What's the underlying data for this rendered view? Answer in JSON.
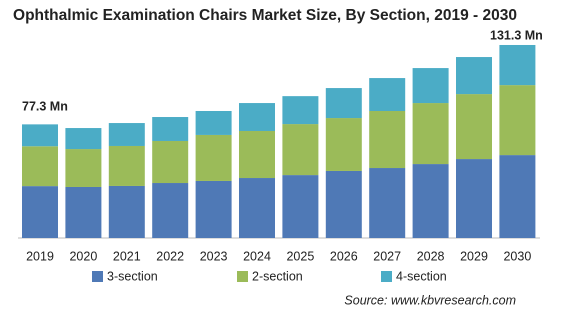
{
  "chart_data": {
    "type": "stacked_bar",
    "title": "Ophthalmic Examination Chairs Market Size, By Section, 2019 - 2030",
    "categories": [
      "2019",
      "2020",
      "2021",
      "2022",
      "2023",
      "2024",
      "2025",
      "2026",
      "2027",
      "2028",
      "2029",
      "2030"
    ],
    "series": [
      {
        "name": "3-section",
        "color": "#4f79b6",
        "values": [
          35.3,
          34.7,
          35.4,
          37.4,
          38.8,
          40.8,
          42.8,
          45.6,
          47.6,
          50.3,
          53.7,
          56.4
        ]
      },
      {
        "name": "2-section",
        "color": "#9bbb59",
        "values": [
          27.1,
          25.8,
          27.2,
          28.6,
          31.3,
          32.0,
          34.7,
          36.0,
          38.8,
          41.5,
          44.2,
          47.6
        ]
      },
      {
        "name": "4-section",
        "color": "#4bacc6",
        "values": [
          14.9,
          14.3,
          15.6,
          16.3,
          16.3,
          19.0,
          19.0,
          20.4,
          22.4,
          23.8,
          25.2,
          27.3
        ]
      }
    ],
    "annotations": [
      "77.3 Mn",
      "131.3 Mn"
    ],
    "source": "Source:  www.kbvresearch.com"
  }
}
